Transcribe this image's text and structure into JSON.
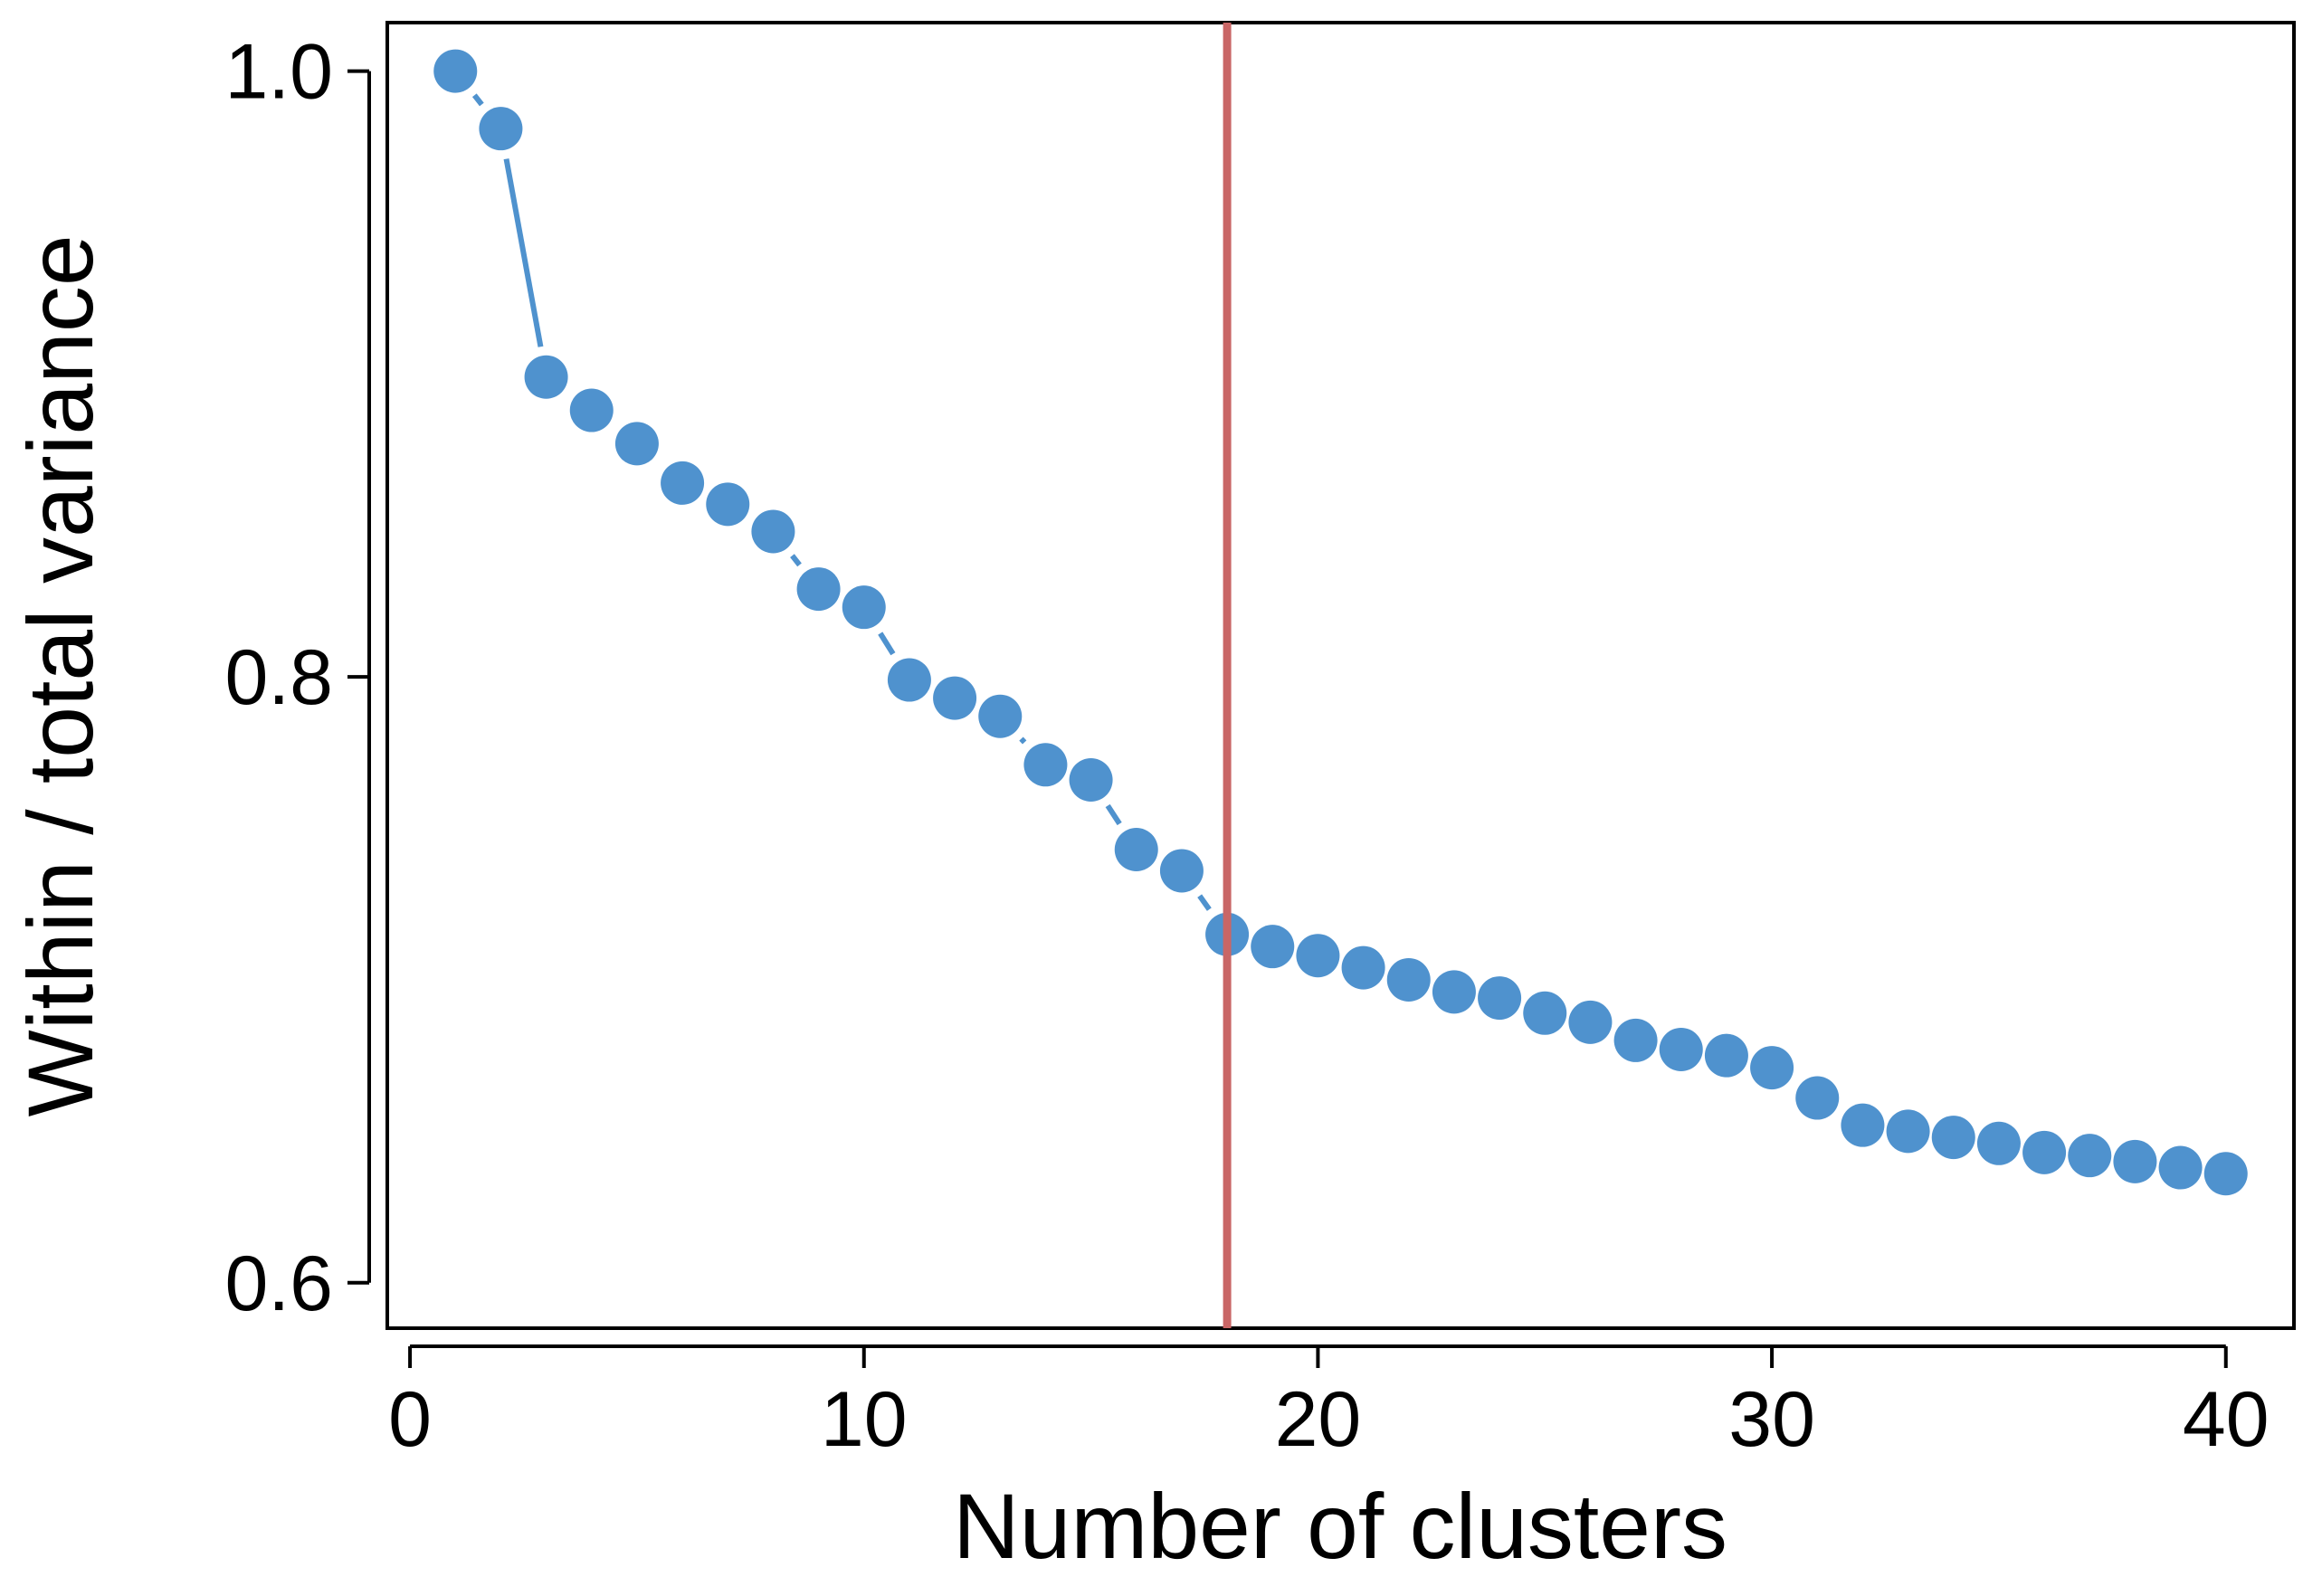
{
  "chart_data": {
    "type": "line",
    "title": "",
    "xlabel": "Number of clusters",
    "ylabel": "Within / total variance",
    "xlim": [
      -0.5,
      41.5
    ],
    "ylim": [
      0.585,
      1.016
    ],
    "xticks": [
      0,
      10,
      20,
      30,
      40
    ],
    "xtick_labels": [
      "0",
      "10",
      "20",
      "30",
      "40"
    ],
    "yticks": [
      0.6,
      0.8,
      1.0
    ],
    "ytick_labels": [
      "0.6",
      "0.8",
      "1.0"
    ],
    "grid": false,
    "legend": "none",
    "vertical_line": {
      "x": 18,
      "color": "#c96666"
    },
    "series": [
      {
        "color": "#4f92ce",
        "x": [
          1,
          2,
          3,
          4,
          5,
          6,
          7,
          8,
          9,
          10,
          11,
          12,
          13,
          14,
          15,
          16,
          17,
          18,
          19,
          20,
          21,
          22,
          23,
          24,
          25,
          26,
          27,
          28,
          29,
          30,
          31,
          32,
          33,
          34,
          35,
          36,
          37,
          38,
          39,
          40
        ],
        "y": [
          1.0,
          0.981,
          0.899,
          0.888,
          0.877,
          0.864,
          0.857,
          0.848,
          0.829,
          0.823,
          0.799,
          0.793,
          0.787,
          0.771,
          0.766,
          0.743,
          0.736,
          0.715,
          0.711,
          0.708,
          0.704,
          0.7,
          0.696,
          0.694,
          0.689,
          0.686,
          0.68,
          0.677,
          0.675,
          0.671,
          0.661,
          0.652,
          0.65,
          0.648,
          0.646,
          0.643,
          0.642,
          0.64,
          0.638,
          0.636
        ]
      }
    ]
  }
}
